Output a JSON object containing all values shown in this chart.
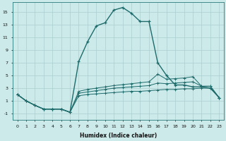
{
  "xlabel": "Humidex (Indice chaleur)",
  "background_color": "#cdeaea",
  "grid_color": "#aacece",
  "line_color": "#1e6b6b",
  "xlim": [
    -0.5,
    23.5
  ],
  "ylim": [
    -2.0,
    16.5
  ],
  "yticks": [
    -1,
    1,
    3,
    5,
    7,
    9,
    11,
    13,
    15
  ],
  "xticks": [
    0,
    1,
    2,
    3,
    4,
    5,
    6,
    7,
    8,
    9,
    10,
    11,
    12,
    13,
    14,
    15,
    16,
    17,
    18,
    19,
    20,
    21,
    22,
    23
  ],
  "line1_x": [
    0,
    1,
    2,
    3,
    4,
    5,
    6,
    7,
    8,
    9,
    10,
    11,
    12,
    13,
    14,
    15,
    16,
    17,
    18,
    19,
    20,
    21,
    22,
    23
  ],
  "line1_y": [
    2.0,
    1.0,
    0.3,
    -0.3,
    -0.3,
    -0.3,
    -0.8,
    7.2,
    10.3,
    12.8,
    13.3,
    15.3,
    15.7,
    14.8,
    13.5,
    13.5,
    7.0,
    5.0,
    3.5,
    3.5,
    3.2,
    3.2,
    3.0,
    1.5
  ],
  "line2_x": [
    0,
    1,
    2,
    3,
    4,
    5,
    6,
    7,
    8,
    9,
    10,
    11,
    12,
    13,
    14,
    15,
    16,
    17,
    18,
    19,
    20,
    21,
    22,
    23
  ],
  "line2_y": [
    2.0,
    1.0,
    0.3,
    -0.3,
    -0.3,
    -0.3,
    -0.8,
    2.5,
    2.8,
    3.0,
    3.2,
    3.4,
    3.55,
    3.7,
    3.85,
    4.0,
    5.2,
    4.4,
    4.5,
    4.6,
    4.8,
    3.3,
    3.3,
    1.5
  ],
  "line3_x": [
    0,
    1,
    2,
    3,
    4,
    5,
    6,
    7,
    8,
    9,
    10,
    11,
    12,
    13,
    14,
    15,
    16,
    17,
    18,
    19,
    20,
    21,
    22,
    23
  ],
  "line3_y": [
    2.0,
    1.0,
    0.3,
    -0.3,
    -0.3,
    -0.3,
    -0.8,
    2.2,
    2.4,
    2.6,
    2.8,
    3.0,
    3.1,
    3.2,
    3.3,
    3.4,
    3.8,
    3.7,
    3.8,
    3.9,
    4.0,
    3.3,
    3.3,
    1.5
  ],
  "line4_x": [
    0,
    1,
    2,
    3,
    4,
    5,
    6,
    7,
    8,
    9,
    10,
    11,
    12,
    13,
    14,
    15,
    16,
    17,
    18,
    19,
    20,
    21,
    22,
    23
  ],
  "line4_y": [
    2.0,
    1.0,
    0.3,
    -0.3,
    -0.3,
    -0.3,
    -0.8,
    1.8,
    2.0,
    2.1,
    2.2,
    2.3,
    2.4,
    2.5,
    2.5,
    2.6,
    2.7,
    2.8,
    2.8,
    2.9,
    2.9,
    3.0,
    3.0,
    1.5
  ]
}
